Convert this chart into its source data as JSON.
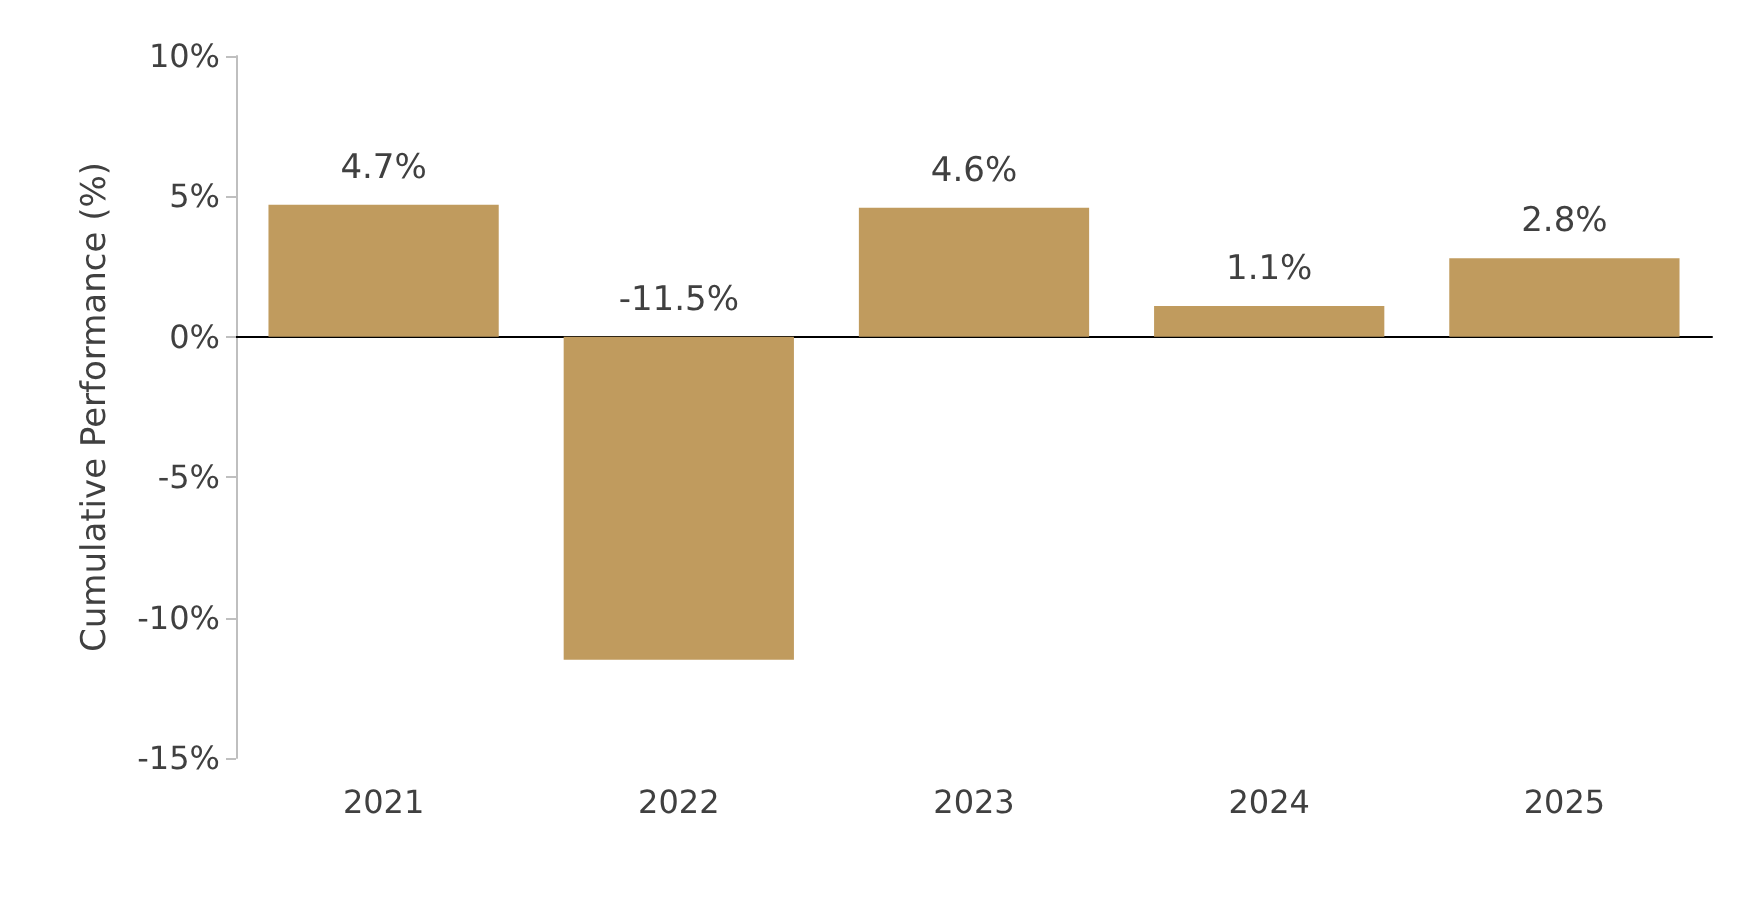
{
  "chart_data": {
    "type": "bar",
    "ylabel": "Cumulative Performance (%)",
    "categories": [
      "2021",
      "2022",
      "2023",
      "2024",
      "2025"
    ],
    "values": [
      4.7,
      -11.5,
      4.6,
      1.1,
      2.8
    ],
    "value_labels": [
      "4.7%",
      "-11.5%",
      "4.6%",
      "1.1%",
      "2.8%"
    ],
    "color": "#c09b5e",
    "ylim": [
      -15,
      10
    ],
    "yticks": [
      {
        "value": -15,
        "label": "-15%"
      },
      {
        "value": -10,
        "label": "-10%"
      },
      {
        "value": -5,
        "label": "-5%"
      },
      {
        "value": 0,
        "label": "0%"
      },
      {
        "value": 5,
        "label": "5%"
      },
      {
        "value": 10,
        "label": "10%"
      }
    ],
    "tick_labels": true
  }
}
